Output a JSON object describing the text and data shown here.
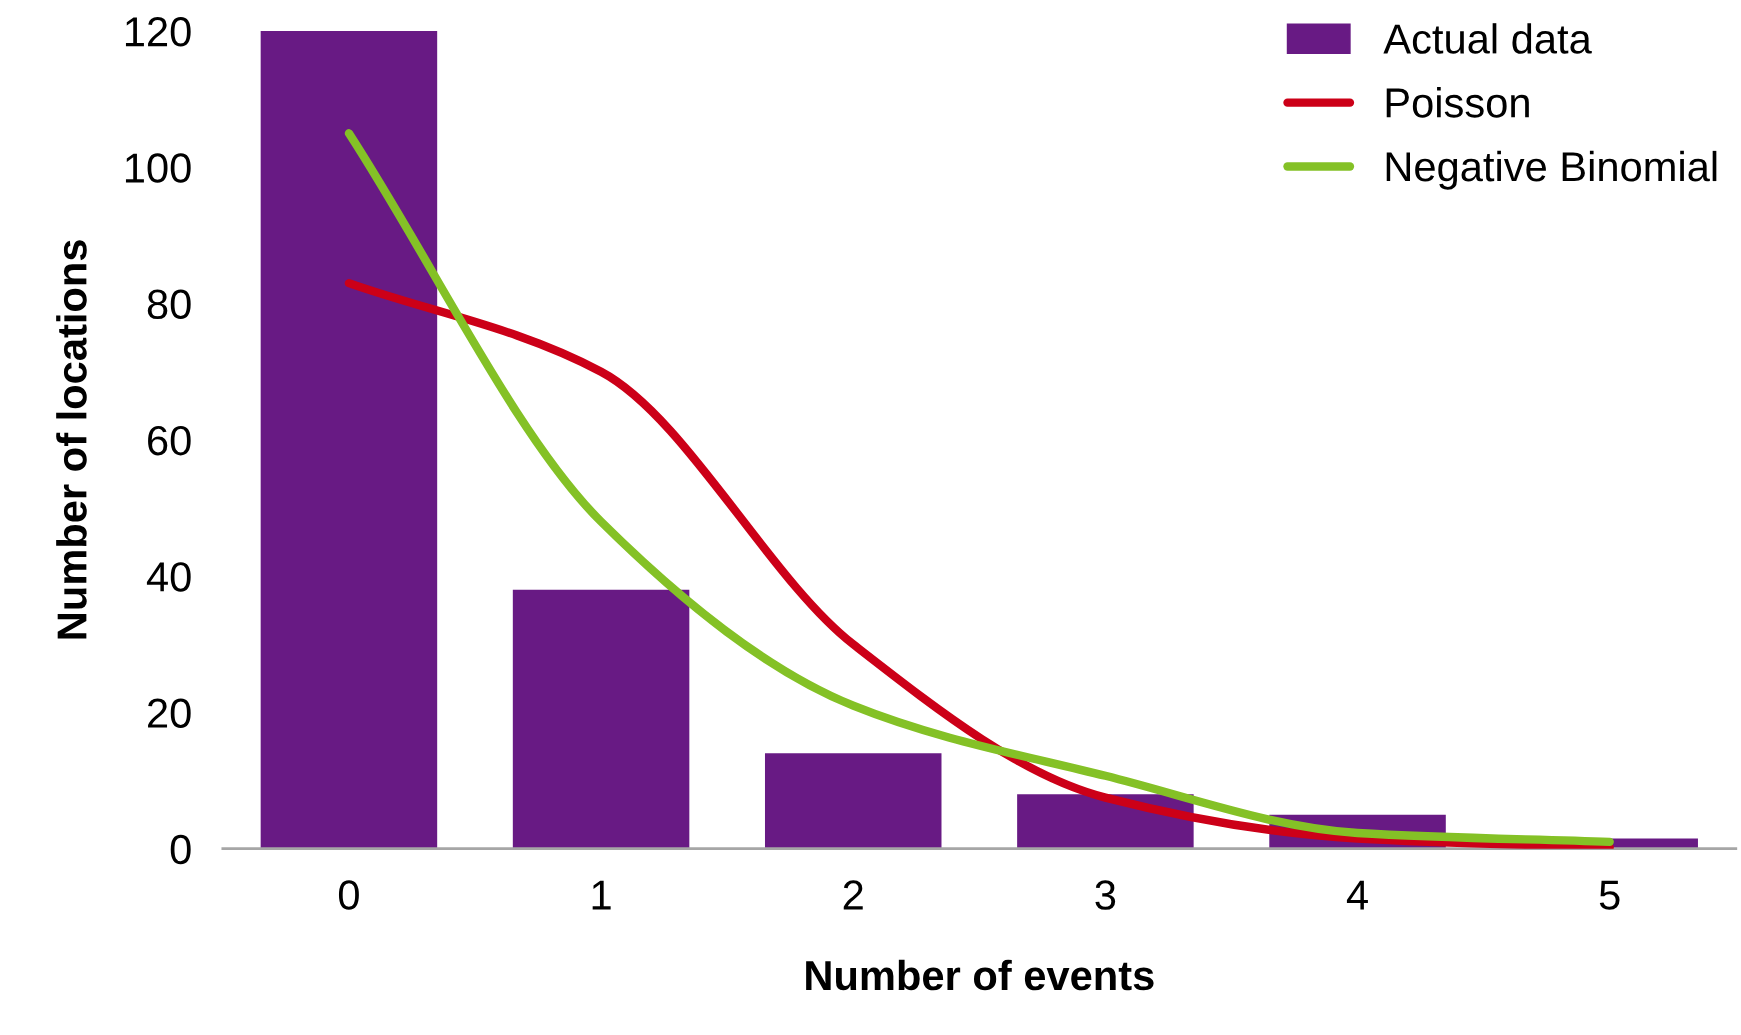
{
  "chart_data": {
    "type": "bar",
    "xlabel": "Number of events",
    "ylabel": "Number of locations",
    "categories": [
      "0",
      "1",
      "2",
      "3",
      "4",
      "5"
    ],
    "series": [
      {
        "name": "Actual data",
        "color": "#681a84",
        "values": [
          120,
          38,
          14,
          8,
          5,
          1.5
        ]
      },
      {
        "name": "Poisson",
        "type": "line",
        "color": "#cc0018",
        "values": [
          83,
          70,
          30,
          7.5,
          1.5,
          0.2
        ]
      },
      {
        "name": "Negative Binomial",
        "type": "line",
        "color": "#84c126",
        "values": [
          105,
          48,
          21,
          10.7,
          2.3,
          1
        ]
      }
    ],
    "ylim": [
      0,
      120
    ],
    "yticks": [
      0,
      20,
      40,
      60,
      80,
      100,
      120
    ],
    "legend": "top right",
    "grid": false,
    "marker": "none",
    "line_style": "solid"
  }
}
